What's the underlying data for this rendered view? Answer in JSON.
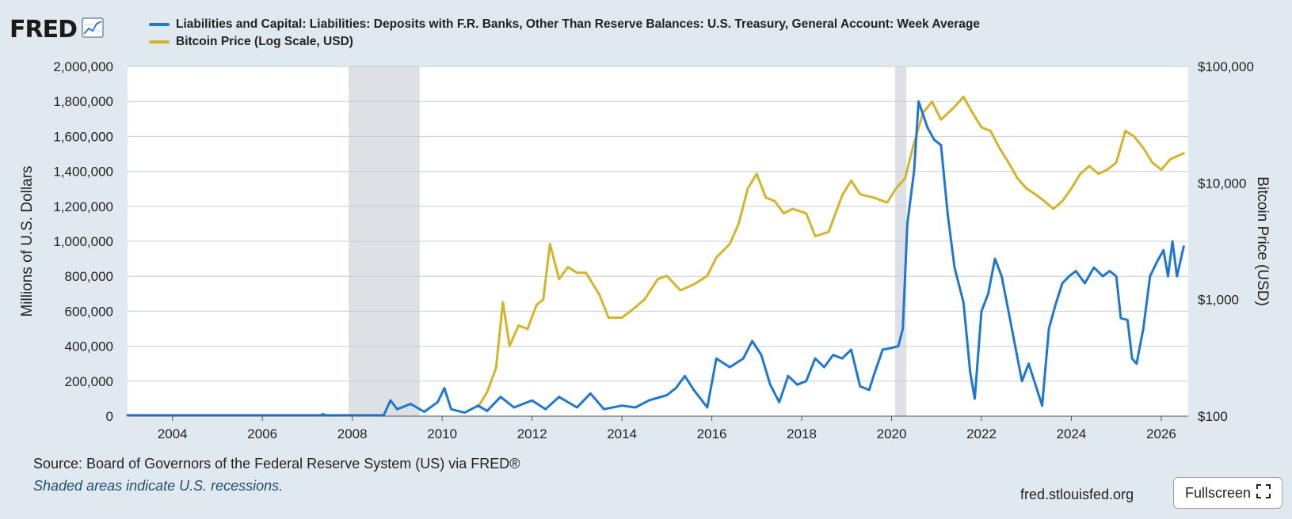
{
  "header": {
    "logo_text": "FRED"
  },
  "footer": {
    "source": "Source: Board of Governors of the Federal Reserve System (US) via FRED®",
    "note": "Shaded areas indicate U.S. recessions.",
    "url": "fred.stlouisfed.org",
    "fullscreen_label": "Fullscreen"
  },
  "icons": {
    "logo_graph": "line-graph-icon",
    "fullscreen": "expand-corners-icon"
  },
  "chart_data": {
    "type": "line",
    "title": "",
    "xlabel": "",
    "ylabel": "Millions of U.S. Dollars",
    "y2label": "Bitcoin Price (USD)",
    "xlim": [
      2003.0,
      2026.6
    ],
    "ylim": [
      0,
      2000000
    ],
    "y2lim": [
      100,
      100000
    ],
    "y2_scale": "log",
    "grid": true,
    "legend_position": "top-left",
    "x_ticks": [
      "2004",
      "2006",
      "2008",
      "2010",
      "2012",
      "2014",
      "2016",
      "2018",
      "2020",
      "2022",
      "2024",
      "2026"
    ],
    "y_ticks": [
      "0",
      "200,000",
      "400,000",
      "600,000",
      "800,000",
      "1,000,000",
      "1,200,000",
      "1,400,000",
      "1,600,000",
      "1,800,000",
      "2,000,000"
    ],
    "y2_ticks": [
      "$100",
      "$1,000",
      "$10,000",
      "$100,000"
    ],
    "recessions": [
      [
        2007.92,
        2009.5
      ],
      [
        2020.08,
        2020.33
      ]
    ],
    "series": [
      {
        "name": "Liabilities and Capital: Liabilities: Deposits with F.R. Banks, Other Than Reserve Balances: U.S. Treasury, General Account: Week Average",
        "color": "#1f77d0",
        "axis": "left",
        "points": [
          [
            2003.0,
            5000
          ],
          [
            2005.0,
            5000
          ],
          [
            2007.3,
            5000
          ],
          [
            2007.35,
            12000
          ],
          [
            2007.4,
            5000
          ],
          [
            2008.7,
            5000
          ],
          [
            2008.85,
            90000
          ],
          [
            2009.0,
            40000
          ],
          [
            2009.3,
            70000
          ],
          [
            2009.6,
            25000
          ],
          [
            2009.9,
            80000
          ],
          [
            2010.05,
            160000
          ],
          [
            2010.2,
            40000
          ],
          [
            2010.5,
            20000
          ],
          [
            2010.8,
            60000
          ],
          [
            2011.0,
            30000
          ],
          [
            2011.3,
            110000
          ],
          [
            2011.6,
            50000
          ],
          [
            2012.0,
            90000
          ],
          [
            2012.3,
            40000
          ],
          [
            2012.6,
            110000
          ],
          [
            2013.0,
            50000
          ],
          [
            2013.3,
            130000
          ],
          [
            2013.6,
            40000
          ],
          [
            2014.0,
            60000
          ],
          [
            2014.3,
            50000
          ],
          [
            2014.6,
            90000
          ],
          [
            2015.0,
            120000
          ],
          [
            2015.2,
            160000
          ],
          [
            2015.4,
            230000
          ],
          [
            2015.6,
            150000
          ],
          [
            2015.9,
            50000
          ],
          [
            2016.1,
            330000
          ],
          [
            2016.4,
            280000
          ],
          [
            2016.7,
            330000
          ],
          [
            2016.9,
            430000
          ],
          [
            2017.1,
            350000
          ],
          [
            2017.3,
            180000
          ],
          [
            2017.5,
            80000
          ],
          [
            2017.7,
            230000
          ],
          [
            2017.9,
            180000
          ],
          [
            2018.1,
            200000
          ],
          [
            2018.3,
            330000
          ],
          [
            2018.5,
            280000
          ],
          [
            2018.7,
            350000
          ],
          [
            2018.9,
            330000
          ],
          [
            2019.1,
            380000
          ],
          [
            2019.3,
            170000
          ],
          [
            2019.5,
            150000
          ],
          [
            2019.6,
            230000
          ],
          [
            2019.8,
            380000
          ],
          [
            2020.0,
            390000
          ],
          [
            2020.15,
            400000
          ],
          [
            2020.25,
            500000
          ],
          [
            2020.35,
            1100000
          ],
          [
            2020.5,
            1400000
          ],
          [
            2020.6,
            1800000
          ],
          [
            2020.8,
            1650000
          ],
          [
            2020.95,
            1580000
          ],
          [
            2021.1,
            1550000
          ],
          [
            2021.25,
            1150000
          ],
          [
            2021.4,
            850000
          ],
          [
            2021.6,
            650000
          ],
          [
            2021.75,
            250000
          ],
          [
            2021.85,
            100000
          ],
          [
            2022.0,
            600000
          ],
          [
            2022.15,
            700000
          ],
          [
            2022.3,
            900000
          ],
          [
            2022.45,
            800000
          ],
          [
            2022.6,
            600000
          ],
          [
            2022.75,
            400000
          ],
          [
            2022.9,
            200000
          ],
          [
            2023.05,
            300000
          ],
          [
            2023.2,
            180000
          ],
          [
            2023.35,
            60000
          ],
          [
            2023.5,
            500000
          ],
          [
            2023.65,
            640000
          ],
          [
            2023.8,
            760000
          ],
          [
            2023.95,
            800000
          ],
          [
            2024.1,
            830000
          ],
          [
            2024.3,
            760000
          ],
          [
            2024.5,
            850000
          ],
          [
            2024.7,
            800000
          ],
          [
            2024.85,
            830000
          ],
          [
            2025.0,
            800000
          ],
          [
            2025.1,
            560000
          ],
          [
            2025.25,
            550000
          ],
          [
            2025.35,
            330000
          ],
          [
            2025.45,
            300000
          ],
          [
            2025.6,
            500000
          ],
          [
            2025.75,
            800000
          ],
          [
            2025.9,
            880000
          ],
          [
            2026.05,
            950000
          ],
          [
            2026.15,
            800000
          ],
          [
            2026.25,
            1000000
          ],
          [
            2026.35,
            800000
          ],
          [
            2026.5,
            970000
          ]
        ]
      },
      {
        "name": "Bitcoin Price (Log Scale, USD)",
        "color": "#d4b52a",
        "axis": "right",
        "points": [
          [
            2010.8,
            120
          ],
          [
            2011.0,
            160
          ],
          [
            2011.2,
            260
          ],
          [
            2011.35,
            950
          ],
          [
            2011.5,
            400
          ],
          [
            2011.7,
            600
          ],
          [
            2011.9,
            560
          ],
          [
            2012.1,
            900
          ],
          [
            2012.25,
            1000
          ],
          [
            2012.4,
            3000
          ],
          [
            2012.6,
            1500
          ],
          [
            2012.8,
            1900
          ],
          [
            2013.0,
            1700
          ],
          [
            2013.2,
            1700
          ],
          [
            2013.5,
            1100
          ],
          [
            2013.7,
            700
          ],
          [
            2014.0,
            700
          ],
          [
            2014.2,
            800
          ],
          [
            2014.5,
            1000
          ],
          [
            2014.8,
            1500
          ],
          [
            2015.0,
            1600
          ],
          [
            2015.3,
            1200
          ],
          [
            2015.6,
            1350
          ],
          [
            2015.9,
            1600
          ],
          [
            2016.1,
            2300
          ],
          [
            2016.4,
            3000
          ],
          [
            2016.6,
            4500
          ],
          [
            2016.8,
            9000
          ],
          [
            2017.0,
            12000
          ],
          [
            2017.2,
            7500
          ],
          [
            2017.4,
            7000
          ],
          [
            2017.6,
            5500
          ],
          [
            2017.8,
            6000
          ],
          [
            2018.1,
            5500
          ],
          [
            2018.3,
            3500
          ],
          [
            2018.6,
            3800
          ],
          [
            2018.9,
            7800
          ],
          [
            2019.1,
            10500
          ],
          [
            2019.3,
            8000
          ],
          [
            2019.6,
            7500
          ],
          [
            2019.9,
            6800
          ],
          [
            2020.1,
            9000
          ],
          [
            2020.3,
            11000
          ],
          [
            2020.5,
            22000
          ],
          [
            2020.7,
            40000
          ],
          [
            2020.9,
            50000
          ],
          [
            2021.1,
            35000
          ],
          [
            2021.4,
            45000
          ],
          [
            2021.6,
            55000
          ],
          [
            2021.8,
            40000
          ],
          [
            2022.0,
            30000
          ],
          [
            2022.2,
            28000
          ],
          [
            2022.4,
            20000
          ],
          [
            2022.6,
            15000
          ],
          [
            2022.8,
            11000
          ],
          [
            2023.0,
            9000
          ],
          [
            2023.2,
            8000
          ],
          [
            2023.4,
            7000
          ],
          [
            2023.6,
            6000
          ],
          [
            2023.8,
            7000
          ],
          [
            2024.0,
            9000
          ],
          [
            2024.2,
            12000
          ],
          [
            2024.4,
            14000
          ],
          [
            2024.6,
            12000
          ],
          [
            2024.8,
            13000
          ],
          [
            2025.0,
            15000
          ],
          [
            2025.2,
            28000
          ],
          [
            2025.4,
            25000
          ],
          [
            2025.6,
            20000
          ],
          [
            2025.8,
            15000
          ],
          [
            2026.0,
            13000
          ],
          [
            2026.2,
            16000
          ],
          [
            2026.5,
            18000
          ]
        ]
      }
    ]
  }
}
